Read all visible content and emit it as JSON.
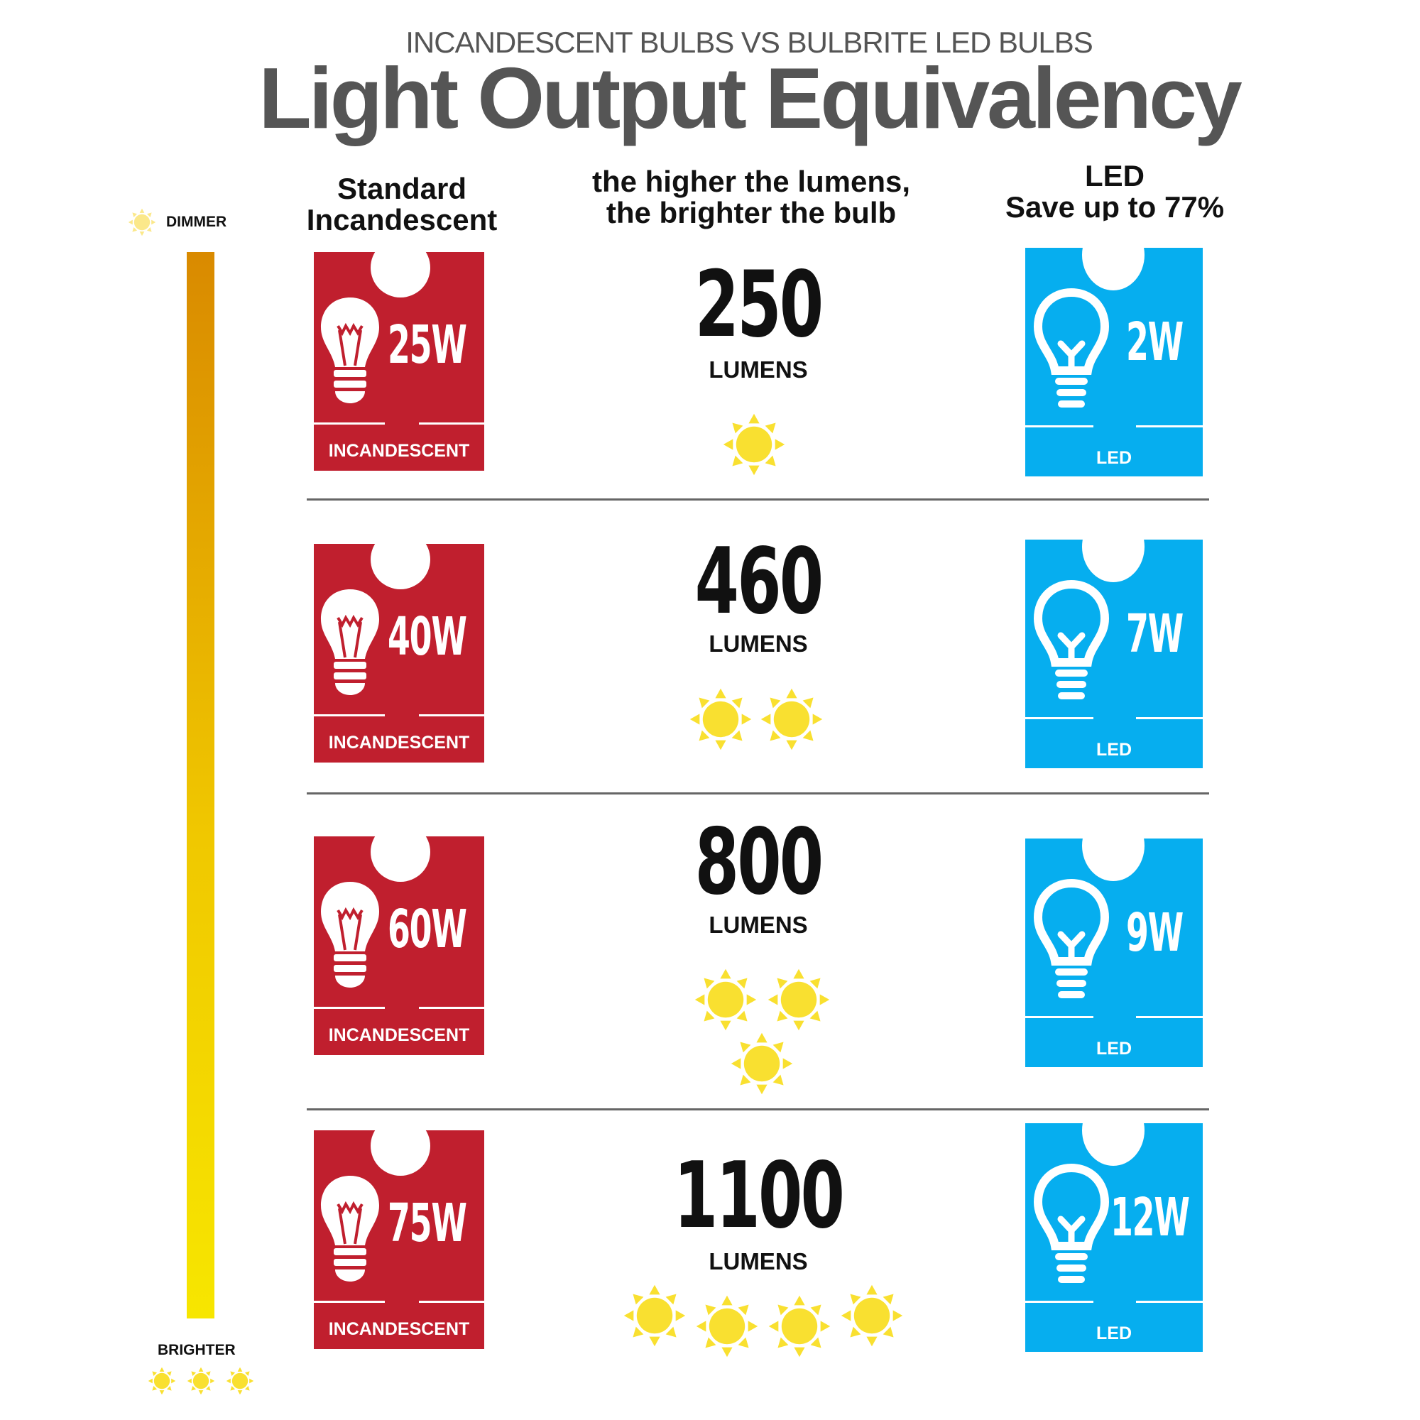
{
  "header": {
    "subtitle": "INCANDESCENT BULBS VS BULBRITE LED BULBS",
    "title": "Light Output Equivalency"
  },
  "columns": {
    "incandescent": [
      "Standard",
      "Incandescent"
    ],
    "lumens": [
      "the higher the lumens,",
      "the brighter the bulb"
    ],
    "led": [
      "LED",
      "Save up to 77%"
    ]
  },
  "scale": {
    "top": "DIMMER",
    "bottom": "BRIGHTER",
    "colors": [
      "#d98a00",
      "#f7e600"
    ]
  },
  "colors": {
    "incandescent": "#c01f2e",
    "led": "#06aeef",
    "sun": "#f9e030"
  },
  "rows": [
    {
      "incandescent_watts": "25W",
      "incandescent_label": "INCANDESCENT",
      "lumens": "250",
      "lumens_label": "LUMENS",
      "led_watts": "2W",
      "led_label": "LED",
      "suns": 1
    },
    {
      "incandescent_watts": "40W",
      "incandescent_label": "INCANDESCENT",
      "lumens": "460",
      "lumens_label": "LUMENS",
      "led_watts": "7W",
      "led_label": "LED",
      "suns": 2
    },
    {
      "incandescent_watts": "60W",
      "incandescent_label": "INCANDESCENT",
      "lumens": "800",
      "lumens_label": "LUMENS",
      "led_watts": "9W",
      "led_label": "LED",
      "suns": 3
    },
    {
      "incandescent_watts": "75W",
      "incandescent_label": "INCANDESCENT",
      "lumens": "1100",
      "lumens_label": "LUMENS",
      "led_watts": "12W",
      "led_label": "LED",
      "suns": 4
    }
  ]
}
